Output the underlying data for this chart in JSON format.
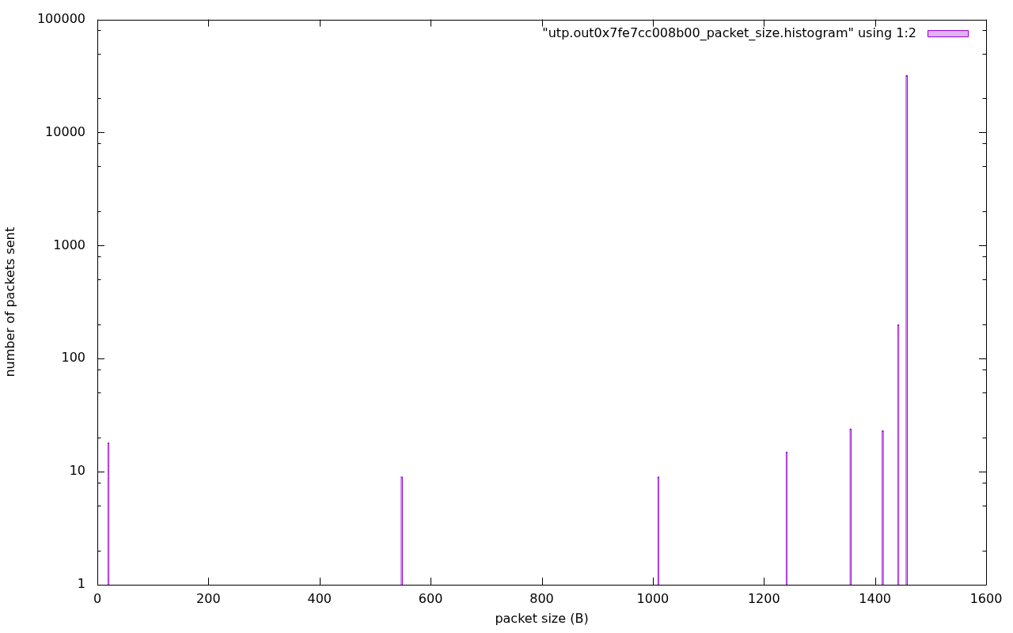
{
  "chart_data": {
    "type": "bar",
    "x": [
      20,
      548,
      1010,
      1241,
      1356,
      1414,
      1442,
      1457
    ],
    "series": [
      {
        "name": "\"utp.out0x7fe7cc008b00_packet_size.histogram\" using 1:2",
        "color": "#9400d3",
        "values": [
          18,
          9,
          9,
          15,
          24,
          23,
          200,
          32000
        ]
      }
    ],
    "xlabel": "packet size (B)",
    "ylabel": "number of packets sent",
    "xlim": [
      0,
      1600
    ],
    "xticks": [
      0,
      200,
      400,
      600,
      800,
      1000,
      1200,
      1400,
      1600
    ],
    "ylim": [
      1,
      100000
    ],
    "yticks": [
      1,
      {
        "value": 2,
        "label": null
      },
      {
        "value": 5,
        "label": null
      },
      {
        "value": 8,
        "label": null
      },
      10,
      {
        "value": 20,
        "label": null
      },
      {
        "value": 50,
        "label": null
      },
      {
        "value": 80,
        "label": null
      },
      100,
      {
        "value": 200,
        "label": null
      },
      {
        "value": 500,
        "label": null
      },
      {
        "value": 800,
        "label": null
      },
      1000,
      {
        "value": 2000,
        "label": null
      },
      {
        "value": 5000,
        "label": null
      },
      {
        "value": 8000,
        "label": null
      },
      10000,
      {
        "value": 20000,
        "label": null
      },
      {
        "value": 50000,
        "label": null
      },
      {
        "value": 80000,
        "label": null
      },
      100000
    ],
    "log": "y",
    "grid": false,
    "legend": "top right"
  }
}
